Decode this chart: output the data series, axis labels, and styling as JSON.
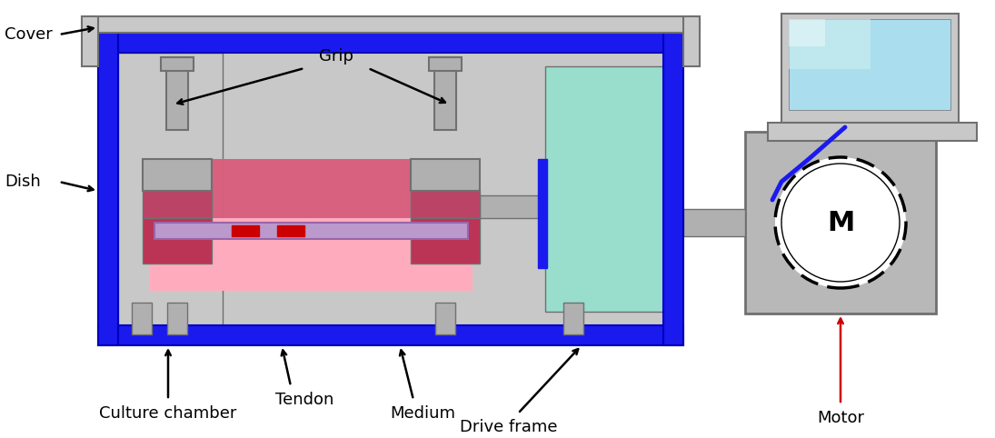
{
  "background_color": "#ffffff",
  "colors": {
    "blue": "#1a1aee",
    "dark_blue": "#0000bb",
    "gray": "#a0a0a0",
    "dark_gray": "#707070",
    "light_gray": "#c8c8c8",
    "med_gray": "#b0b0b0",
    "pink_light": "#ffb8d0",
    "dark_pink": "#bb4466",
    "med_pink": "#dd6688",
    "cyan": "#99ddcc",
    "purple": "#bb99cc",
    "red": "#cc0000",
    "black": "#000000",
    "white": "#ffffff",
    "motor_gray": "#b8b8b8"
  },
  "labels": {
    "cover": "Cover",
    "dish": "Dish",
    "grip": "Grip",
    "tendon": "Tendon",
    "culture_chamber": "Culture chamber",
    "medium": "Medium",
    "drive_frame": "Drive frame",
    "motor": "Motor"
  },
  "figsize": [
    10.95,
    4.82
  ],
  "dpi": 100
}
